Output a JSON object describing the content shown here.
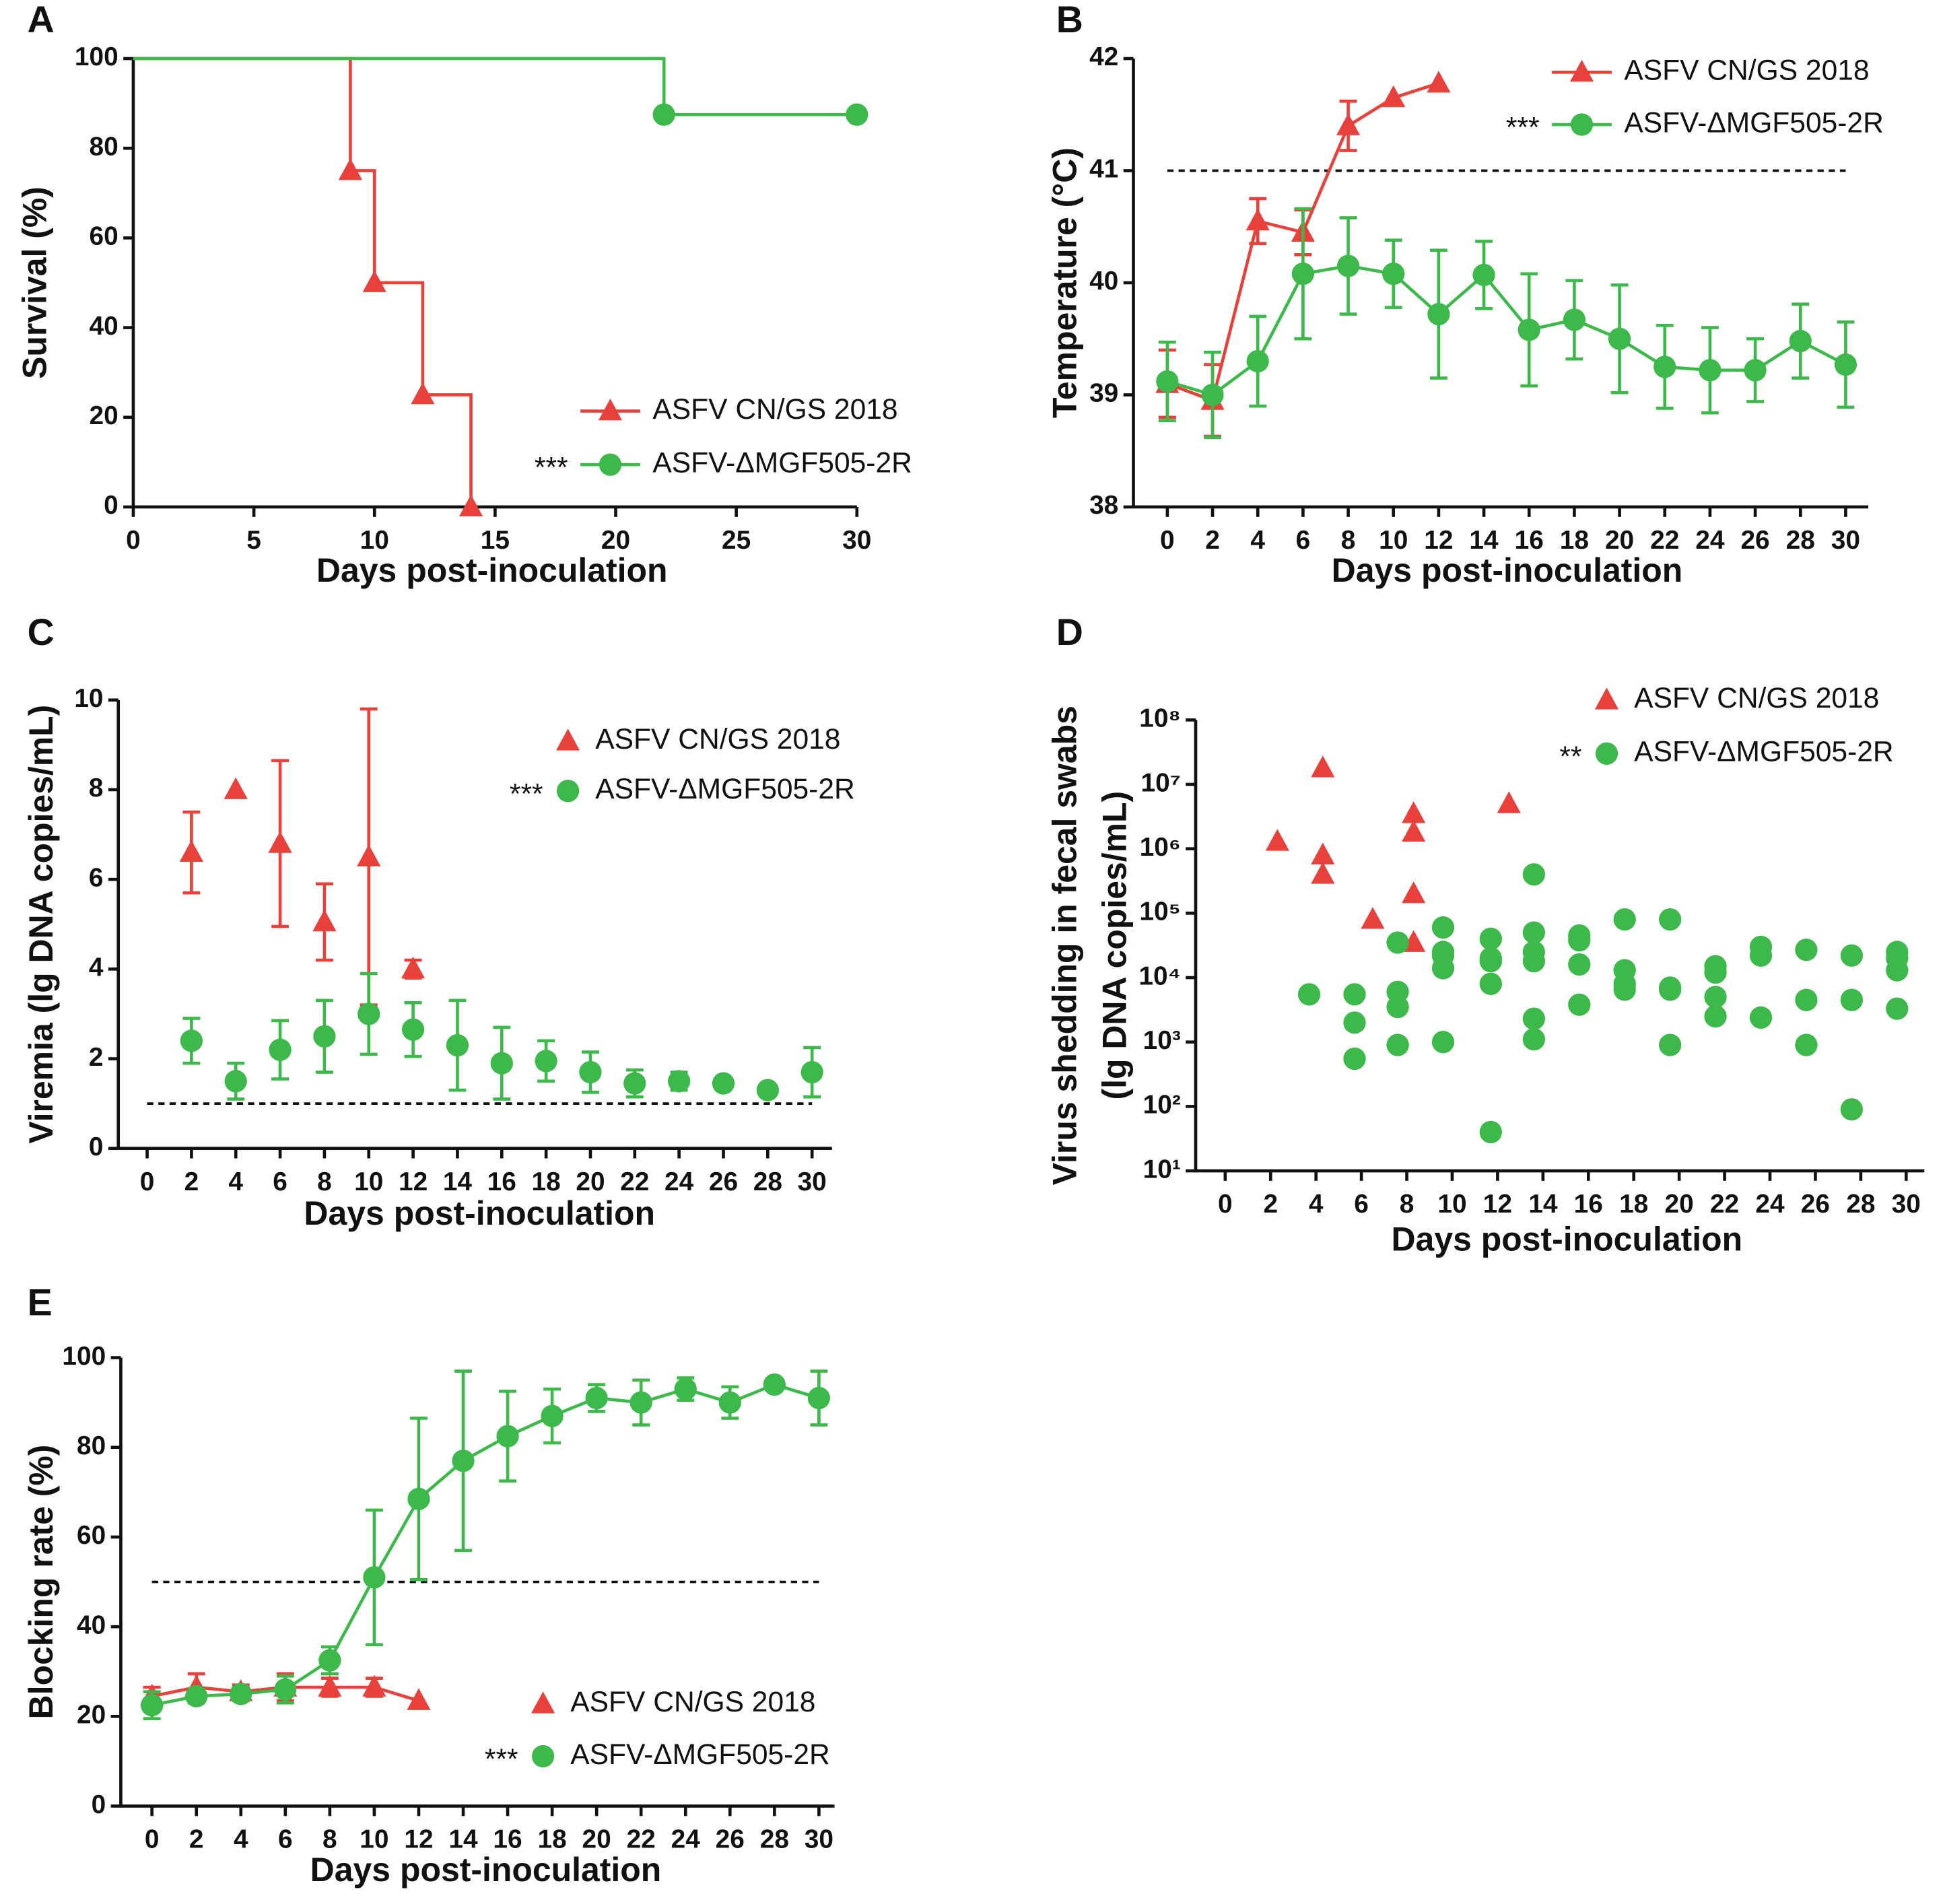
{
  "chart_data": [
    {
      "type": "step",
      "label": "A",
      "x_label": "Days post-inoculation",
      "y_label": "Survival (%)",
      "xlim": [
        0,
        30
      ],
      "xticks": [
        0,
        5,
        10,
        15,
        20,
        25,
        30
      ],
      "ylim": [
        0,
        100
      ],
      "yticks": [
        0,
        20,
        40,
        60,
        80,
        100
      ],
      "series": [
        {
          "name": "ASFV CN/GS 2018",
          "color": "#e8413c",
          "marker": "triangle",
          "x": [
            0,
            9,
            10,
            12,
            14
          ],
          "values": [
            100,
            75,
            50,
            25,
            0
          ]
        },
        {
          "name": "ASFV-ΔMGF505-2R",
          "legend_prefix": "***",
          "color": "#3cb94a",
          "marker": "circle",
          "x": [
            0,
            22,
            30
          ],
          "values": [
            100,
            87.5,
            87.5
          ]
        }
      ]
    },
    {
      "type": "line",
      "label": "B",
      "x_label": "Days post-inoculation",
      "y_label": "Temperature (°C)",
      "xlim": [
        -1.5,
        31
      ],
      "xticks": [
        0,
        2,
        4,
        6,
        8,
        10,
        12,
        14,
        16,
        18,
        20,
        22,
        24,
        26,
        28,
        30
      ],
      "ylim": [
        38,
        42
      ],
      "yticks": [
        38,
        39,
        40,
        41,
        42
      ],
      "threshold": 41,
      "x": [
        0,
        2,
        4,
        6,
        8,
        10,
        12,
        14,
        16,
        18,
        20,
        22,
        24,
        26,
        28,
        30
      ],
      "series": [
        {
          "name": "ASFV CN/GS 2018",
          "color": "#e8413c",
          "marker": "triangle",
          "values": [
            39.1,
            38.95,
            40.55,
            40.45,
            41.4,
            41.65,
            41.78,
            null,
            null,
            null,
            null,
            null,
            null,
            null,
            null,
            null
          ],
          "errors": [
            0.3,
            0.32,
            0.2,
            0.2,
            0.22,
            null,
            null,
            null,
            null,
            null,
            null,
            null,
            null,
            null,
            null,
            null
          ]
        },
        {
          "name": "ASFV-ΔMGF505-2R",
          "legend_prefix": "***",
          "color": "#3cb94a",
          "marker": "circle",
          "values": [
            39.12,
            39.0,
            39.3,
            40.08,
            40.15,
            40.08,
            39.72,
            40.07,
            39.58,
            39.67,
            39.5,
            39.25,
            39.22,
            39.22,
            39.48,
            39.27
          ],
          "errors": [
            0.35,
            0.38,
            0.4,
            0.58,
            0.43,
            0.3,
            0.57,
            0.3,
            0.5,
            0.35,
            0.48,
            0.37,
            0.38,
            0.28,
            0.33,
            0.38
          ]
        }
      ]
    },
    {
      "type": "scatter",
      "label": "C",
      "x_label": "Days post-inoculation",
      "y_label": "Viremia (lg DNA copies/mL)",
      "xlim": [
        -1.3,
        30.9
      ],
      "xticks": [
        0,
        2,
        4,
        6,
        8,
        10,
        12,
        14,
        16,
        18,
        20,
        22,
        24,
        26,
        28,
        30
      ],
      "ylim": [
        0,
        10
      ],
      "yticks": [
        0,
        2,
        4,
        6,
        8,
        10
      ],
      "threshold": 1,
      "x": [
        0,
        2,
        4,
        6,
        8,
        10,
        12,
        14,
        16,
        18,
        20,
        22,
        24,
        26,
        28,
        30
      ],
      "series": [
        {
          "name": "ASFV CN/GS 2018",
          "color": "#e8413c",
          "marker": "triangle",
          "values": [
            null,
            6.6,
            8.0,
            6.8,
            5.05,
            6.5,
            4.0,
            null,
            null,
            null,
            null,
            null,
            null,
            null,
            null,
            null
          ],
          "errors": [
            null,
            0.9,
            null,
            1.85,
            0.85,
            3.3,
            0.2,
            null,
            null,
            null,
            null,
            null,
            null,
            null,
            null,
            null
          ]
        },
        {
          "name": "ASFV-ΔMGF505-2R",
          "legend_prefix": "***",
          "color": "#3cb94a",
          "marker": "circle",
          "values": [
            null,
            2.4,
            1.5,
            2.2,
            2.5,
            3.0,
            2.65,
            2.3,
            1.9,
            1.95,
            1.7,
            1.45,
            1.5,
            1.45,
            1.3,
            1.7
          ],
          "errors": [
            null,
            0.5,
            0.4,
            0.65,
            0.8,
            0.9,
            0.6,
            1.0,
            0.8,
            0.45,
            0.45,
            0.3,
            0.2,
            0.1,
            0.1,
            0.55
          ]
        }
      ]
    },
    {
      "type": "scatter",
      "label": "D",
      "x_label": "Days post-inoculation",
      "y_label": [
        "Virus shedding in fecal swabs",
        "(lg DNA copies/mL)"
      ],
      "log_y": true,
      "xlim": [
        -1.3,
        30.8
      ],
      "xticks": [
        0,
        2,
        4,
        6,
        8,
        10,
        12,
        14,
        16,
        18,
        20,
        22,
        24,
        26,
        28,
        30
      ],
      "ylim": [
        10,
        100000000
      ],
      "yticks": [
        {
          "value": 10,
          "label": "10¹"
        },
        {
          "value": 100,
          "label": "10²"
        },
        {
          "value": 1000,
          "label": "10³"
        },
        {
          "value": 10000,
          "label": "10⁴"
        },
        {
          "value": 100000,
          "label": "10⁵"
        },
        {
          "value": 1000000,
          "label": "10⁶"
        },
        {
          "value": 10000000,
          "label": "10⁷"
        },
        {
          "value": 100000000,
          "label": "10⁸"
        }
      ],
      "series": [
        {
          "name": "ASFV CN/GS 2018",
          "color": "#e8413c",
          "marker": "triangle",
          "x": [
            2.3,
            4.3,
            4.3,
            4.3,
            6.5,
            8.3,
            8.3,
            8.3,
            8.3,
            12.5
          ],
          "values": [
            1300000,
            18000000,
            800000,
            400000,
            80000,
            3500000,
            1800000,
            200000,
            35000,
            5000000
          ]
        },
        {
          "name": "ASFV-ΔMGF505-2R",
          "legend_prefix": "**",
          "color": "#3cb94a",
          "marker": "circle",
          "x": [
            3.7,
            5.7,
            5.7,
            5.7,
            7.6,
            7.6,
            7.6,
            7.6,
            9.6,
            9.6,
            9.6,
            9.6,
            9.6,
            11.7,
            11.7,
            11.7,
            11.7,
            11.7,
            13.6,
            13.6,
            13.6,
            13.6,
            13.6,
            13.6,
            15.6,
            15.6,
            15.6,
            15.6,
            17.6,
            17.6,
            17.6,
            17.6,
            19.6,
            19.6,
            19.6,
            19.6,
            21.6,
            21.6,
            21.6,
            21.6,
            23.6,
            23.6,
            23.6,
            25.6,
            25.6,
            25.6,
            27.6,
            27.6,
            27.6,
            29.6,
            29.6,
            29.6,
            29.6
          ],
          "values": [
            5500,
            5500,
            2000,
            550,
            35000,
            6000,
            3500,
            900,
            60000,
            25000,
            22000,
            14000,
            1000,
            40000,
            20000,
            18000,
            8000,
            40,
            400000,
            50000,
            25000,
            18000,
            2300,
            1100,
            45000,
            38000,
            16000,
            3800,
            80000,
            13000,
            8000,
            6500,
            80000,
            7000,
            6500,
            900,
            15000,
            12000,
            5000,
            2500,
            30000,
            22000,
            2400,
            27000,
            4500,
            900,
            22000,
            4500,
            90,
            25000,
            20000,
            13000,
            3300
          ]
        }
      ]
    },
    {
      "type": "line",
      "label": "E",
      "x_label": "Days post-inoculation",
      "y_label": "Blocking rate (%)",
      "xlim": [
        -1.4,
        30.7
      ],
      "xticks": [
        0,
        2,
        4,
        6,
        8,
        10,
        12,
        14,
        16,
        18,
        20,
        22,
        24,
        26,
        28,
        30
      ],
      "ylim": [
        0,
        100
      ],
      "yticks": [
        0,
        20,
        40,
        60,
        80,
        100
      ],
      "threshold": 50,
      "x": [
        0,
        2,
        4,
        6,
        8,
        10,
        12,
        14,
        16,
        18,
        20,
        22,
        24,
        26,
        28,
        30
      ],
      "series": [
        {
          "name": "ASFV CN/GS 2018",
          "color": "#e8413c",
          "marker": "triangle",
          "values": [
            24.5,
            26.5,
            25.5,
            26.5,
            26.5,
            26.5,
            23.5,
            null,
            null,
            null,
            null,
            null,
            null,
            null,
            null,
            null
          ],
          "errors": [
            2,
            3,
            1.5,
            3,
            2,
            2,
            null,
            null,
            null,
            null,
            null,
            null,
            null,
            null,
            null,
            null
          ]
        },
        {
          "name": "ASFV-ΔMGF505-2R",
          "legend_prefix": "***",
          "color": "#3cb94a",
          "marker": "circle",
          "values": [
            22.5,
            24.5,
            25,
            26,
            32.5,
            51,
            68.5,
            77,
            82.5,
            87,
            91,
            90,
            93,
            90,
            94,
            91
          ],
          "errors": [
            3,
            1.5,
            1.5,
            3,
            3,
            15,
            18,
            20,
            10,
            6,
            3,
            5,
            2.5,
            3.5,
            1,
            6
          ]
        }
      ]
    }
  ]
}
